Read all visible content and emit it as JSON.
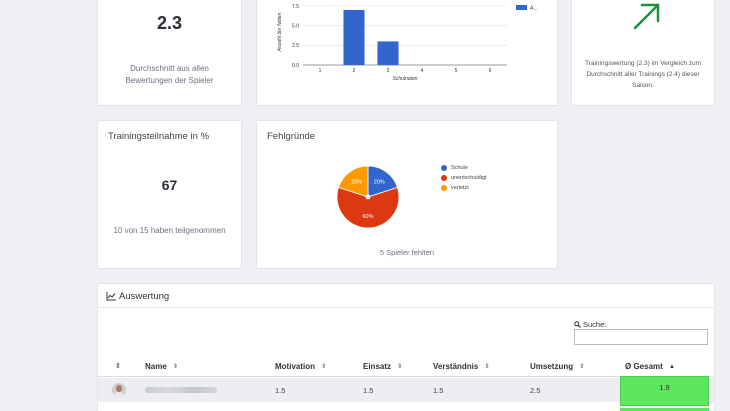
{
  "kpi_avg": {
    "value": "2.3",
    "description": "Durchschnitt aus allen Bewertungen der Spieler"
  },
  "grades_chart": {
    "ylabel": "Anzahl der Noten",
    "xlabel": "Schulnoten",
    "legend_label": "A...",
    "series_color": "#3366cc"
  },
  "trend_card": {
    "icon": "arrow-up-right-icon",
    "icon_color": "#1e8f3e",
    "description": "Trainingswertung (2.3) im Vergleich zum Durchschnitt aller Trainings (2.4) dieser Saison."
  },
  "attendance": {
    "title": "Trainingsteilnahme in %",
    "value": "67",
    "description": "10 von 15 haben teilgenommen"
  },
  "absence": {
    "title": "Fehlgründe",
    "legend": [
      {
        "label": "Schule",
        "color": "#3366cc"
      },
      {
        "label": "unentschuldigt",
        "color": "#dc3912"
      },
      {
        "label": "verletzt",
        "color": "#ff9900"
      }
    ],
    "footer": "5 Spieler fehlten"
  },
  "evaluation": {
    "title": "Auswertung",
    "title_icon": "line-chart-icon",
    "search_label": "Suche:",
    "search_value": "",
    "columns": [
      "Name",
      "Motivation",
      "Einsatz",
      "Verständnis",
      "Umsetzung",
      "Ø Gesamt"
    ],
    "rows": [
      {
        "name": "",
        "motivation": "1.5",
        "einsatz": "1.5",
        "verstaendnis": "1.5",
        "umsetzung": "2.5",
        "gesamt": "1.8"
      }
    ],
    "highlight_color": "#5fe65f"
  },
  "chart_data": [
    {
      "type": "bar",
      "categories": [
        "1",
        "2",
        "3",
        "4",
        "5",
        "6"
      ],
      "series": [
        {
          "name": "A...",
          "values": [
            0,
            7,
            3,
            0,
            0,
            0
          ]
        }
      ],
      "xlabel": "Schulnoten",
      "ylabel": "Anzahl der Noten",
      "ylim": [
        0,
        7.5
      ],
      "yticks": [
        "0.0",
        "2.5",
        "5.0",
        "7.5"
      ],
      "grid": true,
      "legend": "right"
    },
    {
      "type": "pie",
      "categories": [
        "Schule",
        "unentschuldigt",
        "verletzt"
      ],
      "values": [
        20,
        60,
        20
      ],
      "data_labels": [
        "20%",
        "60%",
        "20%"
      ],
      "legend": "right"
    }
  ]
}
